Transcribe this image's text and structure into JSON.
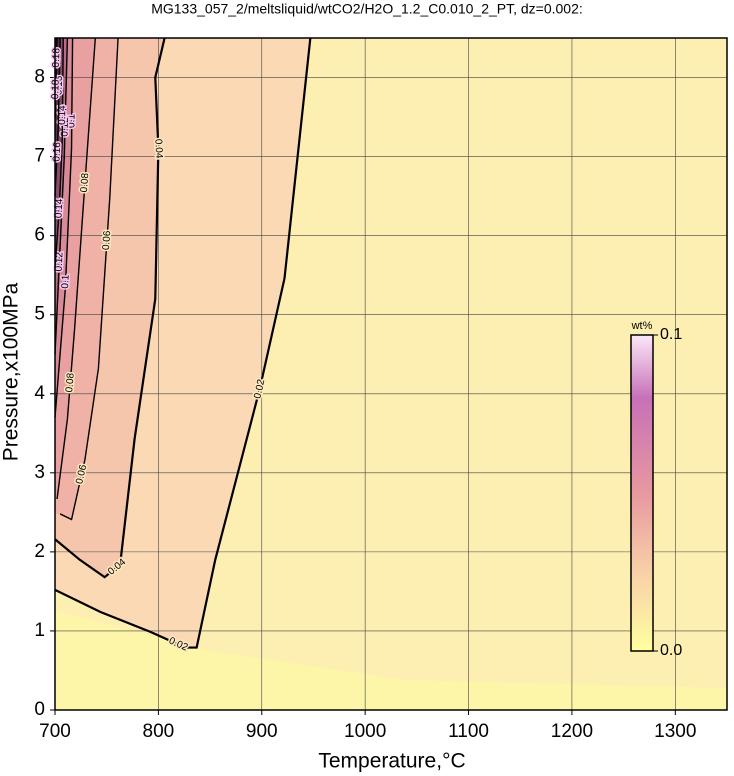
{
  "chart_data": {
    "type": "contour",
    "title": "MG133_057_2/meltsliquid/wtCO2/H2O_1.2_C0.010_2_PT, dz=0.002:",
    "x_label": "Temperature,°C",
    "y_label": "Pressure,x100MPa",
    "xlim": [
      700,
      1350
    ],
    "xticks": [
      700,
      800,
      900,
      1000,
      1100,
      1200,
      1300
    ],
    "ylim": [
      0,
      8.5
    ],
    "yticks": [
      0,
      1,
      2,
      3,
      4,
      5,
      6,
      7,
      8
    ],
    "grid": true,
    "series": [
      {
        "name": "0.02",
        "color": "#000000",
        "x": [
          700,
          744,
          792,
          826,
          837,
          855,
          898,
          922,
          947
        ],
        "y": [
          1.52,
          1.24,
          0.99,
          0.79,
          0.79,
          1.9,
          4.06,
          5.46,
          8.5
        ]
      },
      {
        "name": "0.04",
        "color": "#000000",
        "x": [
          700,
          724,
          748,
          763,
          777,
          797,
          800,
          797,
          806
        ],
        "y": [
          2.16,
          1.9,
          1.68,
          1.84,
          3.43,
          5.2,
          7.1,
          8.0,
          8.5
        ]
      },
      {
        "name": "0.06",
        "color": "#000000",
        "x": [
          705,
          716,
          729,
          742,
          753,
          761
        ],
        "y": [
          2.48,
          2.41,
          3.17,
          4.32,
          6.48,
          8.5
        ]
      },
      {
        "name": "0.08",
        "color": "#000000",
        "x": [
          702,
          712,
          719,
          729,
          739
        ],
        "y": [
          2.67,
          3.68,
          4.83,
          6.67,
          8.5
        ]
      },
      {
        "name": "0.1",
        "color": "#000000",
        "x": [
          700,
          710,
          716,
          717
        ],
        "y": [
          3.7,
          5.33,
          7.1,
          8.5
        ]
      },
      {
        "name": "0.12",
        "color": "#000000",
        "x": [
          700,
          704,
          709,
          712
        ],
        "y": [
          4.5,
          5.6,
          7.0,
          8.5
        ]
      },
      {
        "name": "0.14",
        "color": "#000000",
        "x": [
          700,
          704,
          707,
          708
        ],
        "y": [
          5.6,
          6.3,
          7.2,
          8.5
        ]
      },
      {
        "name": "0.16",
        "color": "#000000",
        "x": [
          700,
          703,
          705
        ],
        "y": [
          6.5,
          7.3,
          8.5
        ]
      },
      {
        "name": "0.18",
        "color": "#000000",
        "x": [
          700,
          702
        ],
        "y": [
          7.5,
          8.5
        ]
      }
    ],
    "colorbar": {
      "label": "wt%",
      "lim": [
        0,
        0.1
      ],
      "ticks": [
        {
          "value": 0,
          "label": "0.0"
        },
        {
          "value": 0.1,
          "label": "0.1"
        }
      ]
    }
  }
}
